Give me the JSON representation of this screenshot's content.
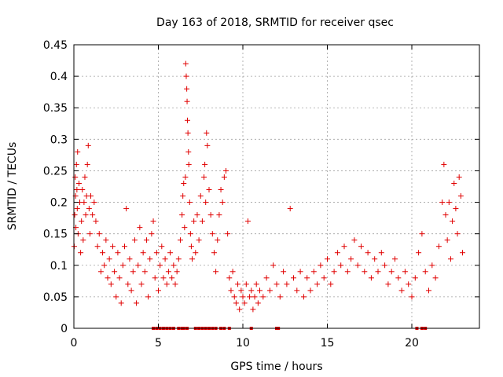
{
  "chart_data": {
    "type": "scatter",
    "title": "Day 163 of 2018, SRMTID for receiver qsec",
    "xlabel": "GPS time / hours",
    "ylabel": "SRMTID / TECUs",
    "xlim": [
      0,
      24
    ],
    "ylim": [
      0,
      0.45
    ],
    "x_ticks": [
      0,
      5,
      10,
      15,
      20
    ],
    "x_tick_labels": [
      "0",
      "5",
      "10",
      "15",
      "20"
    ],
    "y_ticks": [
      0,
      0.05,
      0.1,
      0.15,
      0.2,
      0.25,
      0.3,
      0.35,
      0.4,
      0.45
    ],
    "y_tick_labels": [
      "0",
      "0.05",
      "0.1",
      "0.15",
      "0.2",
      "0.25",
      "0.3",
      "0.35",
      "0.4",
      "0.45"
    ],
    "grid": true,
    "marker": "+",
    "series_color": "#e00000",
    "zero_markers_x": [
      4.7,
      4.9,
      5.1,
      5.3,
      5.5,
      5.7,
      5.9,
      6.2,
      6.4,
      6.5,
      6.7,
      7.2,
      7.4,
      7.6,
      7.8,
      8.0,
      8.2,
      8.4,
      8.7,
      8.9,
      9.2,
      10.5,
      12.0,
      12.1,
      20.3,
      20.6,
      20.8
    ],
    "points": [
      [
        0.02,
        0.13
      ],
      [
        0.05,
        0.18
      ],
      [
        0.08,
        0.24
      ],
      [
        0.1,
        0.21
      ],
      [
        0.12,
        0.16
      ],
      [
        0.15,
        0.26
      ],
      [
        0.18,
        0.22
      ],
      [
        0.2,
        0.19
      ],
      [
        0.22,
        0.28
      ],
      [
        0.25,
        0.15
      ],
      [
        0.3,
        0.23
      ],
      [
        0.35,
        0.2
      ],
      [
        0.4,
        0.12
      ],
      [
        0.45,
        0.17
      ],
      [
        0.5,
        0.22
      ],
      [
        0.55,
        0.14
      ],
      [
        0.6,
        0.2
      ],
      [
        0.65,
        0.24
      ],
      [
        0.7,
        0.18
      ],
      [
        0.75,
        0.21
      ],
      [
        0.8,
        0.26
      ],
      [
        0.85,
        0.29
      ],
      [
        0.9,
        0.19
      ],
      [
        0.95,
        0.15
      ],
      [
        1.0,
        0.21
      ],
      [
        1.1,
        0.18
      ],
      [
        1.2,
        0.2
      ],
      [
        1.3,
        0.17
      ],
      [
        1.4,
        0.13
      ],
      [
        1.5,
        0.15
      ],
      [
        1.6,
        0.09
      ],
      [
        1.7,
        0.12
      ],
      [
        1.8,
        0.1
      ],
      [
        1.9,
        0.14
      ],
      [
        2.0,
        0.08
      ],
      [
        2.1,
        0.11
      ],
      [
        2.2,
        0.07
      ],
      [
        2.3,
        0.13
      ],
      [
        2.4,
        0.09
      ],
      [
        2.5,
        0.05
      ],
      [
        2.6,
        0.12
      ],
      [
        2.7,
        0.08
      ],
      [
        2.8,
        0.04
      ],
      [
        2.9,
        0.1
      ],
      [
        3.0,
        0.13
      ],
      [
        3.1,
        0.19
      ],
      [
        3.2,
        0.07
      ],
      [
        3.3,
        0.11
      ],
      [
        3.4,
        0.06
      ],
      [
        3.5,
        0.09
      ],
      [
        3.6,
        0.14
      ],
      [
        3.7,
        0.04
      ],
      [
        3.8,
        0.1
      ],
      [
        3.9,
        0.16
      ],
      [
        4.0,
        0.07
      ],
      [
        4.1,
        0.12
      ],
      [
        4.2,
        0.09
      ],
      [
        4.3,
        0.14
      ],
      [
        4.4,
        0.05
      ],
      [
        4.5,
        0.11
      ],
      [
        4.6,
        0.15
      ],
      [
        4.7,
        0.17
      ],
      [
        4.8,
        0.08
      ],
      [
        4.9,
        0.12
      ],
      [
        5.0,
        0.06
      ],
      [
        5.1,
        0.1
      ],
      [
        5.2,
        0.13
      ],
      [
        5.3,
        0.08
      ],
      [
        5.4,
        0.11
      ],
      [
        5.5,
        0.07
      ],
      [
        5.6,
        0.09
      ],
      [
        5.7,
        0.12
      ],
      [
        5.8,
        0.08
      ],
      [
        5.9,
        0.1
      ],
      [
        6.0,
        0.07
      ],
      [
        6.1,
        0.09
      ],
      [
        6.2,
        0.11
      ],
      [
        6.3,
        0.14
      ],
      [
        6.4,
        0.18
      ],
      [
        6.45,
        0.21
      ],
      [
        6.5,
        0.23
      ],
      [
        6.55,
        0.16
      ],
      [
        6.6,
        0.24
      ],
      [
        6.62,
        0.42
      ],
      [
        6.65,
        0.4
      ],
      [
        6.68,
        0.38
      ],
      [
        6.7,
        0.36
      ],
      [
        6.72,
        0.33
      ],
      [
        6.75,
        0.31
      ],
      [
        6.78,
        0.28
      ],
      [
        6.8,
        0.26
      ],
      [
        6.85,
        0.2
      ],
      [
        6.9,
        0.15
      ],
      [
        6.95,
        0.13
      ],
      [
        7.0,
        0.11
      ],
      [
        7.1,
        0.17
      ],
      [
        7.2,
        0.12
      ],
      [
        7.3,
        0.18
      ],
      [
        7.4,
        0.14
      ],
      [
        7.5,
        0.21
      ],
      [
        7.6,
        0.17
      ],
      [
        7.7,
        0.24
      ],
      [
        7.75,
        0.26
      ],
      [
        7.8,
        0.2
      ],
      [
        7.85,
        0.31
      ],
      [
        7.9,
        0.29
      ],
      [
        8.0,
        0.22
      ],
      [
        8.1,
        0.18
      ],
      [
        8.2,
        0.15
      ],
      [
        8.3,
        0.12
      ],
      [
        8.4,
        0.09
      ],
      [
        8.5,
        0.14
      ],
      [
        8.6,
        0.18
      ],
      [
        8.7,
        0.22
      ],
      [
        8.8,
        0.2
      ],
      [
        8.9,
        0.24
      ],
      [
        9.0,
        0.25
      ],
      [
        9.1,
        0.15
      ],
      [
        9.2,
        0.08
      ],
      [
        9.3,
        0.06
      ],
      [
        9.4,
        0.09
      ],
      [
        9.5,
        0.05
      ],
      [
        9.6,
        0.04
      ],
      [
        9.7,
        0.07
      ],
      [
        9.8,
        0.03
      ],
      [
        9.9,
        0.06
      ],
      [
        10.0,
        0.05
      ],
      [
        10.1,
        0.04
      ],
      [
        10.2,
        0.07
      ],
      [
        10.3,
        0.17
      ],
      [
        10.4,
        0.05
      ],
      [
        10.5,
        0.06
      ],
      [
        10.6,
        0.03
      ],
      [
        10.7,
        0.05
      ],
      [
        10.8,
        0.07
      ],
      [
        10.9,
        0.04
      ],
      [
        11.0,
        0.06
      ],
      [
        11.2,
        0.05
      ],
      [
        11.4,
        0.08
      ],
      [
        11.6,
        0.06
      ],
      [
        11.8,
        0.1
      ],
      [
        12.0,
        0.07
      ],
      [
        12.2,
        0.05
      ],
      [
        12.4,
        0.09
      ],
      [
        12.6,
        0.07
      ],
      [
        12.8,
        0.19
      ],
      [
        13.0,
        0.08
      ],
      [
        13.2,
        0.06
      ],
      [
        13.4,
        0.09
      ],
      [
        13.6,
        0.05
      ],
      [
        13.8,
        0.08
      ],
      [
        14.0,
        0.06
      ],
      [
        14.2,
        0.09
      ],
      [
        14.4,
        0.07
      ],
      [
        14.6,
        0.1
      ],
      [
        14.8,
        0.08
      ],
      [
        15.0,
        0.11
      ],
      [
        15.2,
        0.07
      ],
      [
        15.4,
        0.09
      ],
      [
        15.6,
        0.12
      ],
      [
        15.8,
        0.1
      ],
      [
        16.0,
        0.13
      ],
      [
        16.2,
        0.09
      ],
      [
        16.4,
        0.11
      ],
      [
        16.6,
        0.14
      ],
      [
        16.8,
        0.1
      ],
      [
        17.0,
        0.13
      ],
      [
        17.2,
        0.09
      ],
      [
        17.4,
        0.12
      ],
      [
        17.6,
        0.08
      ],
      [
        17.8,
        0.11
      ],
      [
        18.0,
        0.09
      ],
      [
        18.2,
        0.12
      ],
      [
        18.4,
        0.1
      ],
      [
        18.6,
        0.07
      ],
      [
        18.8,
        0.09
      ],
      [
        19.0,
        0.11
      ],
      [
        19.2,
        0.08
      ],
      [
        19.4,
        0.06
      ],
      [
        19.6,
        0.09
      ],
      [
        19.8,
        0.07
      ],
      [
        20.0,
        0.05
      ],
      [
        20.2,
        0.08
      ],
      [
        20.4,
        0.12
      ],
      [
        20.6,
        0.15
      ],
      [
        20.8,
        0.09
      ],
      [
        21.0,
        0.06
      ],
      [
        21.2,
        0.1
      ],
      [
        21.4,
        0.08
      ],
      [
        21.6,
        0.13
      ],
      [
        21.8,
        0.2
      ],
      [
        21.9,
        0.26
      ],
      [
        22.0,
        0.18
      ],
      [
        22.1,
        0.14
      ],
      [
        22.2,
        0.2
      ],
      [
        22.3,
        0.11
      ],
      [
        22.4,
        0.17
      ],
      [
        22.5,
        0.23
      ],
      [
        22.6,
        0.19
      ],
      [
        22.7,
        0.15
      ],
      [
        22.8,
        0.24
      ],
      [
        22.9,
        0.21
      ],
      [
        23.0,
        0.12
      ]
    ]
  }
}
